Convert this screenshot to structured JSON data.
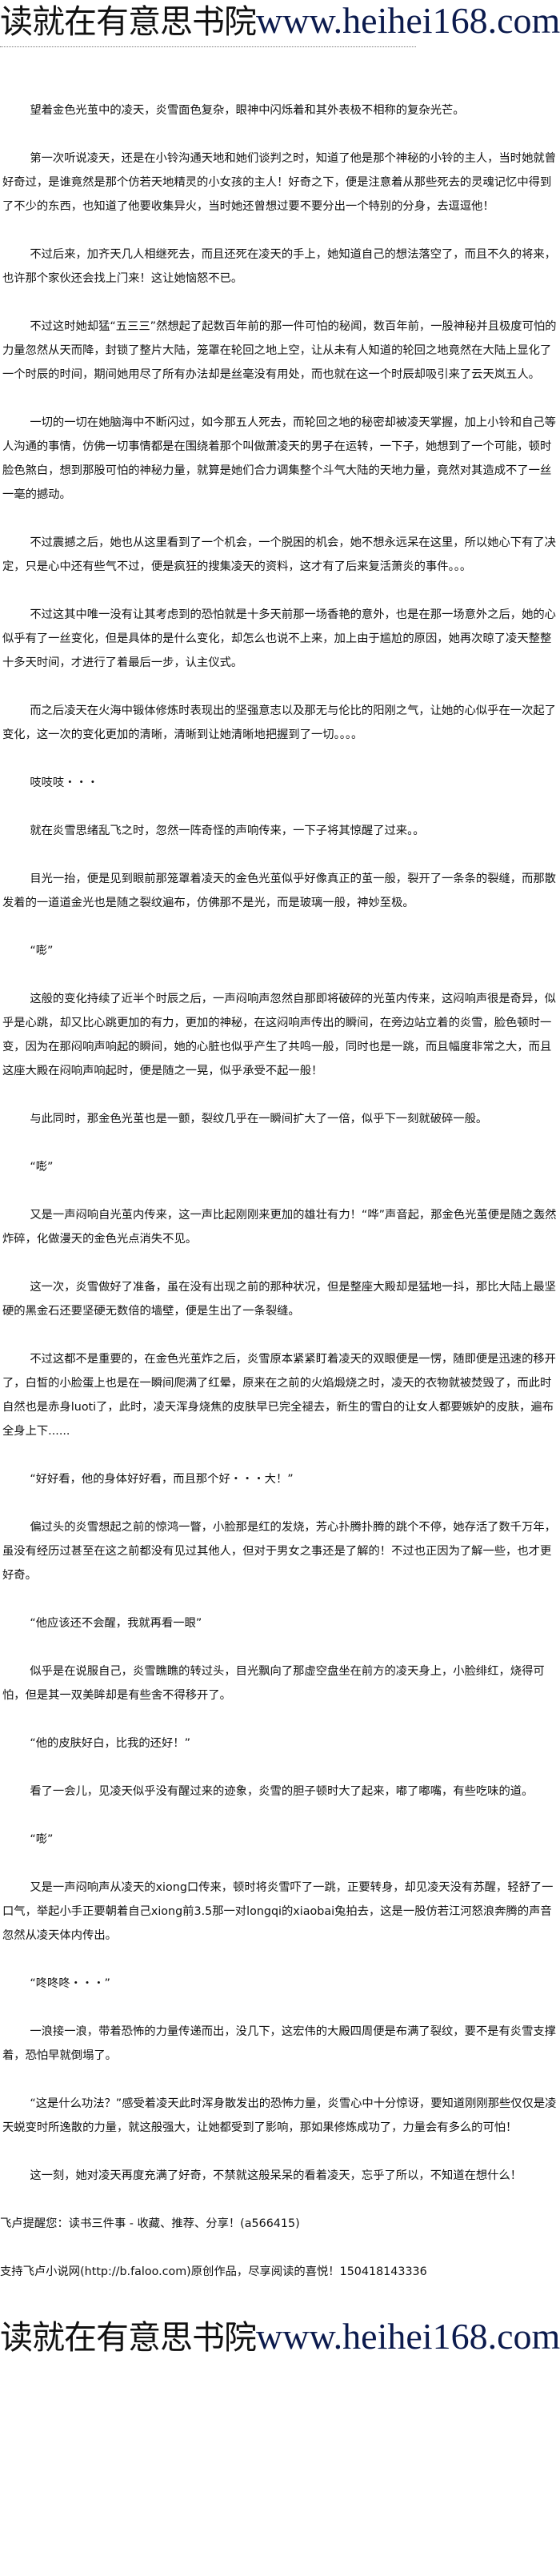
{
  "banner": {
    "site_name": "读就在有意思书院",
    "url": "www.heihei168.com"
  },
  "paragraphs": [
    "望着金色光茧中的凌天，炎雪面色复杂，眼神中闪烁着和其外表极不相称的复杂光芒。",
    "第一次听说凌天，还是在小铃沟通天地和她们谈判之时，知道了他是那个神秘的小铃的主人，当时她就曾好奇过，是谁竟然是那个仿若天地精灵的小女孩的主人！好奇之下，便是注意着从那些死去的灵魂记忆中得到了不少的东西，也知道了他要收集异火，当时她还曾想过要不要分出一个特别的分身，去逗逗他！",
    "不过后来，加齐天几人相继死去，而且还死在凌天的手上，她知道自己的想法落空了，而且不久的将来，也许那个家伙还会找上门来！这让她恼怒不已。",
    "不过这时她却猛“五三三”然想起了起数百年前的那一件可怕的秘闻，数百年前，一股神秘并且极度可怕的力量忽然从天而降，封锁了整片大陆，笼罩在轮回之地上空，让从未有人知道的轮回之地竟然在大陆上显化了一个时辰的时间，期间她用尽了所有办法却是丝毫没有用处，而也就在这一个时辰却吸引来了云天岚五人。",
    "一切的一切在她脑海中不断闪过，如今那五人死去，而轮回之地的秘密却被凌天掌握，加上小铃和自己等人沟通的事情，仿佛一切事情都是在围绕着那个叫做萧凌天的男子在运转，一下子，她想到了一个可能，顿时脸色煞白，想到那股可怕的神秘力量，就算是她们合力调集整个斗气大陆的天地力量，竟然对其造成不了一丝一毫的撼动。",
    "不过震撼之后，她也从这里看到了一个机会，一个脱困的机会，她不想永远呆在这里，所以她心下有了决定，只是心中还有些气不过，便是疯狂的搜集凌天的资料，这才有了后来复活萧炎的事件。。。",
    "不过这其中唯一没有让其考虑到的恐怕就是十多天前那一场香艳的意外，也是在那一场意外之后，她的心似乎有了一丝变化，但是具体的是什么变化，却怎么也说不上来，加上由于尴尬的原因，她再次晾了凌天整整十多天时间，才进行了着最后一步，认主仪式。",
    "而之后凌天在火海中锻体修炼时表现出的坚强意志以及那无与伦比的阳刚之气，让她的心似乎在一次起了变化，这一次的变化更加的清晰，清晰到让她清晰地把握到了一切。。。。",
    "吱吱吱・・・",
    "就在炎雪思绪乱飞之时，忽然一阵奇怪的声响传来，一下子将其惊醒了过来。。",
    "目光一抬，便是见到眼前那笼罩着凌天的金色光茧似乎好像真正的茧一般，裂开了一条条的裂缝，而那散发着的一道道金光也是随之裂纹遍布，仿佛那不是光，而是玻璃一般，神妙至极。",
    "“嘭”",
    "这般的变化持续了近半个时辰之后，一声闷响声忽然自那即将破碎的光茧内传来，这闷响声很是奇异，似乎是心跳，却又比心跳更加的有力，更加的神秘，在这闷响声传出的瞬间，在旁边站立着的炎雪，脸色顿时一变，因为在那闷响声响起的瞬间，她的心脏也似乎产生了共鸣一般，同时也是一跳，而且幅度非常之大，而且这座大殿在闷响声响起时，便是随之一晃，似乎承受不起一般！",
    "与此同时，那金色光茧也是一颤，裂纹几乎在一瞬间扩大了一倍，似乎下一刻就破碎一般。",
    "“嘭”",
    "又是一声闷响自光茧内传来，这一声比起刚刚来更加的雄壮有力！“哗”声音起，那金色光茧便是随之轰然炸碎，化做漫天的金色光点消失不见。",
    "这一次，炎雪做好了准备，虽在没有出现之前的那种状况，但是整座大殿却是猛地一抖，那比大陆上最坚硬的黑金石还要坚硬无数倍的墙壁，便是生出了一条裂缝。",
    "不过这都不是重要的，在金色光茧炸之后，炎雪原本紧紧盯着凌天的双眼便是一愣，随即便是迅速的移开了，白皙的小脸蛋上也是在一瞬间爬满了红晕，原来在之前的火焰煅烧之时，凌天的衣物就被焚毁了，而此时自然也是赤身luoti了，此时，凌天浑身烧焦的皮肤早已完全褪去，新生的雪白的让女人都要嫉妒的皮肤，遍布全身上下......",
    "“好好看，他的身体好好看，而且那个好・・・大！”",
    "偏过头的炎雪想起之前的惊鸿一瞥，小脸那是红的发烧，芳心扑腾扑腾的跳个不停，她存活了数千万年，虽没有经历过甚至在这之前都没有见过其他人，但对于男女之事还是了解的！不过也正因为了解一些，也才更好奇。",
    "“他应该还不会醒，我就再看一眼”",
    "似乎是在说服自己，炎雪瞧瞧的转过头，目光飘向了那虚空盘坐在前方的凌天身上，小脸绯红，烧得可怕，但是其一双美眸却是有些舍不得移开了。",
    "“他的皮肤好白，比我的还好！”",
    "看了一会儿，见凌天似乎没有醒过来的迹象，炎雪的胆子顿时大了起来，嘟了嘟嘴，有些吃味的道。",
    "“嘭”",
    "又是一声闷响声从凌天的xiong口传来，顿时将炎雪吓了一跳，正要转身，却见凌天没有苏醒，轻舒了一口气，举起小手正要朝着自己xiong前3.5那一对longqi的xiaobai兔拍去，这是一股仿若江河怒浪奔腾的声音忽然从凌天体内传出。",
    "“咚咚咚・・・”",
    "一浪接一浪，带着恐怖的力量传递而出，没几下，这宏伟的大殿四周便是布满了裂纹，要不是有炎雪支撑着，恐怕早就倒塌了。",
    "“这是什么功法？”感受着凌天此时浑身散发出的恐怖力量，炎雪心中十分惊讶，要知道刚刚那些仅仅是凌天蜕变时所逸散的力量，就这般强大，让她都受到了影响，那如果修炼成功了，力量会有多么的可怕！",
    "这一刻，她对凌天再度充满了好奇，不禁就这般呆呆的看着凌天，忘乎了所以，不知道在想什么！"
  ],
  "footer": {
    "reminder": "飞卢提醒您：读书三件事 - 收藏、推荐、分享！(a566415)",
    "support": "支持飞卢小说网(http://b.faloo.com)原创作品，尽享阅读的喜悦！150418143336"
  }
}
